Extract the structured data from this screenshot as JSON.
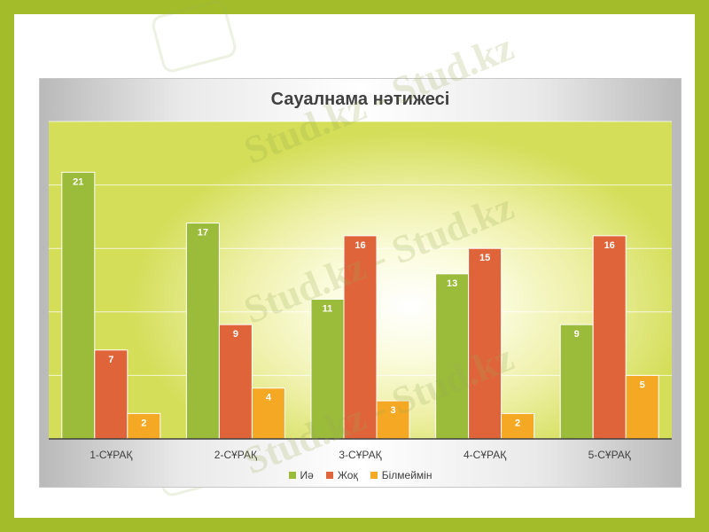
{
  "slide": {
    "watermark_text": "Stud.kz - Stud.kz",
    "colors": {
      "frame": "#a3bd2a",
      "background": "#ffffff"
    }
  },
  "chart_data": {
    "type": "bar",
    "title": "Сауалнама нәтижесі",
    "xlabel": "",
    "ylabel": "",
    "categories": [
      "1-СҰРАҚ",
      "2-СҰРАҚ",
      "3-СҰРАҚ",
      "4-СҰРАҚ",
      "5-СҰРАҚ"
    ],
    "series": [
      {
        "name": "Иә",
        "color": "#9bbb3a",
        "values": [
          21,
          17,
          11,
          13,
          9
        ]
      },
      {
        "name": "Жоқ",
        "color": "#e0643a",
        "values": [
          7,
          9,
          16,
          15,
          16
        ]
      },
      {
        "name": "Білмеймін",
        "color": "#f5a823",
        "values": [
          2,
          4,
          3,
          2,
          5
        ]
      }
    ],
    "ylim": [
      0,
      25
    ],
    "grid": true,
    "legend_position": "bottom",
    "data_labels": true
  }
}
